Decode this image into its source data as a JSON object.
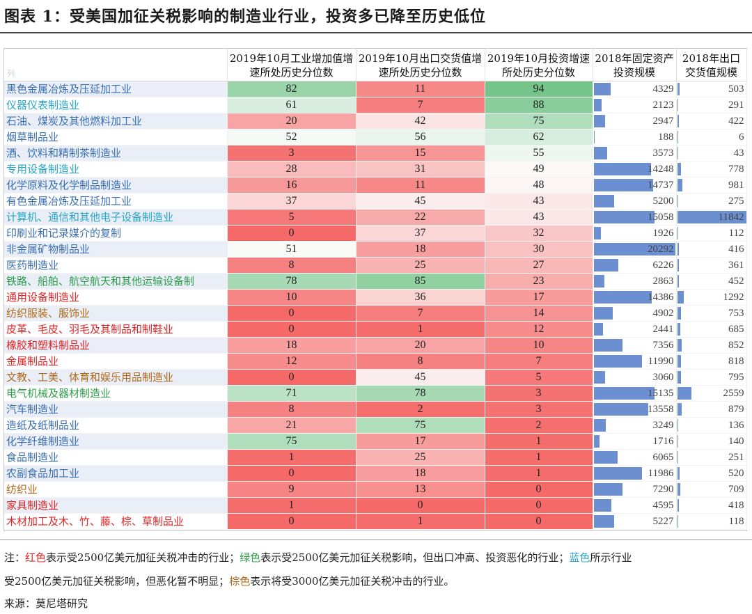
{
  "title": "图表 1：受美国加征关税影响的制造业行业，投资多已降至历史低位",
  "table": {
    "corner": "列",
    "headers": [
      "2019年10月工业增加值增速所处历史分位数",
      "2019年10月出口交货值增速所处历史分位数",
      "2019年10月投资增速所处历史分位数",
      "2018年固定资产投资规模",
      "2018年出口交货值规模"
    ],
    "rows": [
      {
        "name": "黑色金属冶炼及压延加工业",
        "color": "#3a6fb2",
        "iva": 82,
        "exp": 11,
        "inv": 94,
        "fai": 4329,
        "expv": 503
      },
      {
        "name": "仪器仪表制造业",
        "color": "#27a6c8",
        "iva": 61,
        "exp": 7,
        "inv": 88,
        "fai": 2123,
        "expv": 291
      },
      {
        "name": "石油、煤炭及其他燃料加工业",
        "color": "#3a6fb2",
        "iva": 20,
        "exp": 42,
        "inv": 75,
        "fai": 2947,
        "expv": 422
      },
      {
        "name": "烟草制品业",
        "color": "#3a6fb2",
        "iva": 52,
        "exp": 56,
        "inv": 62,
        "fai": 188,
        "expv": 6
      },
      {
        "name": "酒、饮料和精制茶制造业",
        "color": "#3a6fb2",
        "iva": 3,
        "exp": 15,
        "inv": 55,
        "fai": 3573,
        "expv": 43
      },
      {
        "name": "专用设备制造业",
        "color": "#27a6c8",
        "iva": 28,
        "exp": 31,
        "inv": 49,
        "fai": 14248,
        "expv": 778
      },
      {
        "name": "化学原料及化学制品制造业",
        "color": "#3a6fb2",
        "iva": 16,
        "exp": 11,
        "inv": 48,
        "fai": 14737,
        "expv": 981
      },
      {
        "name": "有色金属冶炼及压延加工业",
        "color": "#3a6fb2",
        "iva": 37,
        "exp": 45,
        "inv": 43,
        "fai": 5200,
        "expv": 275
      },
      {
        "name": "计算机、通信和其他电子设备制造业",
        "color": "#27a6c8",
        "iva": 5,
        "exp": 22,
        "inv": 43,
        "fai": 15058,
        "expv": 11842
      },
      {
        "name": "印刷业和记录媒介的复制",
        "color": "#3a6fb2",
        "iva": 0,
        "exp": 37,
        "inv": 32,
        "fai": 1926,
        "expv": 112
      },
      {
        "name": "非金属矿物制品业",
        "color": "#3a6fb2",
        "iva": 51,
        "exp": 18,
        "inv": 30,
        "fai": 20292,
        "expv": 416
      },
      {
        "name": "医药制造业",
        "color": "#3a6fb2",
        "iva": 8,
        "exp": 25,
        "inv": 27,
        "fai": 6226,
        "expv": 361
      },
      {
        "name": "铁路、船舶、航空航天和其他运输设备制",
        "color": "#2e9e4a",
        "iva": 78,
        "exp": 85,
        "inv": 23,
        "fai": 2863,
        "expv": 452
      },
      {
        "name": "通用设备制造业",
        "color": "#e02626",
        "iva": 10,
        "exp": 36,
        "inv": 17,
        "fai": 14386,
        "expv": 1292
      },
      {
        "name": "纺织服装、服饰业",
        "color": "#b06a1a",
        "iva": 0,
        "exp": 7,
        "inv": 14,
        "fai": 4902,
        "expv": 753
      },
      {
        "name": "皮革、毛皮、羽毛及其制品和制鞋业",
        "color": "#e02626",
        "iva": 0,
        "exp": 1,
        "inv": 12,
        "fai": 2441,
        "expv": 685
      },
      {
        "name": "橡胶和塑料制品业",
        "color": "#e02626",
        "iva": 18,
        "exp": 20,
        "inv": 10,
        "fai": 7356,
        "expv": 852
      },
      {
        "name": "金属制品业",
        "color": "#e02626",
        "iva": 12,
        "exp": 8,
        "inv": 7,
        "fai": 11990,
        "expv": 818
      },
      {
        "name": "文教、工美、体育和娱乐用品制造业",
        "color": "#b06a1a",
        "iva": 0,
        "exp": 45,
        "inv": 5,
        "fai": 3060,
        "expv": 795
      },
      {
        "name": "电气机械及器材制造业",
        "color": "#2e9e4a",
        "iva": 71,
        "exp": 78,
        "inv": 3,
        "fai": 15135,
        "expv": 2559
      },
      {
        "name": "汽车制造业",
        "color": "#3a6fb2",
        "iva": 8,
        "exp": 2,
        "inv": 3,
        "fai": 13558,
        "expv": 879
      },
      {
        "name": "造纸及纸制品业",
        "color": "#3a6fb2",
        "iva": 21,
        "exp": 75,
        "inv": 2,
        "fai": 3249,
        "expv": 136
      },
      {
        "name": "化学纤维制造业",
        "color": "#3a6fb2",
        "iva": 75,
        "exp": 17,
        "inv": 1,
        "fai": 1716,
        "expv": 140
      },
      {
        "name": "食品制造业",
        "color": "#3a6fb2",
        "iva": 1,
        "exp": 25,
        "inv": 1,
        "fai": 6065,
        "expv": 251
      },
      {
        "name": "农副食品加工业",
        "color": "#3a6fb2",
        "iva": 0,
        "exp": 18,
        "inv": 1,
        "fai": 11986,
        "expv": 520
      },
      {
        "name": "纺织业",
        "color": "#b06a1a",
        "iva": 9,
        "exp": 13,
        "inv": 0,
        "fai": 7290,
        "expv": 709
      },
      {
        "name": "家具制造业",
        "color": "#e02626",
        "iva": 1,
        "exp": 0,
        "inv": 0,
        "fai": 4595,
        "expv": 418
      },
      {
        "name": "木材加工及木、竹、藤、棕、草制品业",
        "color": "#e02626",
        "iva": 0,
        "exp": 1,
        "inv": 0,
        "fai": 5227,
        "expv": 118
      }
    ]
  },
  "note": {
    "prefix": "注：",
    "red_word": "红色",
    "red_text": "表示受2500亿美元加征关税冲击的行业；",
    "green_word": "绿色",
    "green_text": "表示受2500亿美元加征关税影响，但出口冲高、投资恶化的行业；",
    "blue_word": "蓝色",
    "blue_text": "所示行业",
    "line2_text": "受2500亿美元加征关税影响，但恶化暂不明显；",
    "brown_word": "棕色",
    "brown_text": "表示将受3000亿美元加征关税冲击的行业。"
  },
  "source": "来源：莫尼塔研究",
  "colors": {
    "red": "#e02626",
    "green": "#2e9e4a",
    "blue": "#27a6c8",
    "brown": "#b06a1a",
    "bar": "#6b8fd0"
  }
}
